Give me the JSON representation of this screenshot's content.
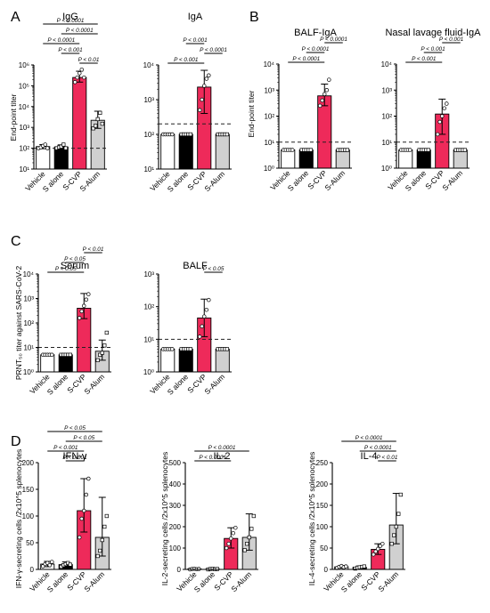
{
  "colors": {
    "Vehicle": "#ffffff",
    "S alone": "#000000",
    "S-CVP": "#ee2a5a",
    "S-Alum": "#d0d0d0",
    "axis": "#000000"
  },
  "panels": [
    {
      "letter": "A"
    },
    {
      "letter": "B"
    },
    {
      "letter": "C"
    },
    {
      "letter": "D"
    }
  ],
  "chart_data": [
    {
      "id": "A-IgG",
      "type": "bar",
      "scale": "log",
      "panel": "A",
      "title": "IgG",
      "ylabel": "End-point titer",
      "categories": [
        "Vehicle",
        "S alone",
        "S-CVP",
        "S-Alum"
      ],
      "values": [
        120,
        115,
        250000,
        2200
      ],
      "errors": [
        [
          95,
          150
        ],
        [
          90,
          145
        ],
        [
          150000,
          500000
        ],
        [
          900,
          6000
        ]
      ],
      "points": [
        [
          100,
          110,
          130,
          150,
          100
        ],
        [
          100,
          110,
          120,
          150,
          100
        ],
        [
          150000,
          250000,
          400000,
          600000,
          250000
        ],
        [
          900,
          1200,
          2500,
          5000,
          1500
        ]
      ],
      "ylim": [
        10,
        1000000
      ],
      "ticks": [
        10,
        100,
        1000,
        10000,
        100000,
        1000000
      ],
      "tick_labels": [
        "10¹",
        "10²",
        "10³",
        "10⁴",
        "10⁵",
        "10⁶"
      ],
      "dashed": 100,
      "comparisons": [
        {
          "from": 2,
          "to": 3,
          "label": "P < 0.01"
        },
        {
          "from": 1,
          "to": 2,
          "label": "P < 0.001"
        },
        {
          "from": 0,
          "to": 2,
          "label": "P < 0.0001"
        },
        {
          "from": 1,
          "to": 3,
          "label": "P < 0.0001"
        },
        {
          "from": 0,
          "to": 3,
          "label": "P < 0.0001"
        }
      ]
    },
    {
      "id": "A-IgA",
      "type": "bar",
      "scale": "log",
      "panel": "A",
      "title": "IgA",
      "ylabel": "",
      "categories": [
        "Vehicle",
        "S alone",
        "S-CVP",
        "S-Alum"
      ],
      "values": [
        100,
        100,
        2300,
        100
      ],
      "errors": [
        [
          100,
          100
        ],
        [
          100,
          100
        ],
        [
          400,
          7000
        ],
        [
          100,
          100
        ]
      ],
      "points": [
        [
          100,
          100,
          100,
          100,
          100
        ],
        [
          100,
          100,
          100,
          100,
          100
        ],
        [
          500,
          1000,
          2500,
          4000,
          5000
        ],
        [
          100,
          100,
          100,
          100,
          100
        ]
      ],
      "ylim": [
        10,
        10000
      ],
      "ticks": [
        10,
        100,
        1000,
        10000
      ],
      "tick_labels": [
        "10¹",
        "10²",
        "10³",
        "10⁴"
      ],
      "dashed": 200,
      "comparisons": [
        {
          "from": 0,
          "to": 2,
          "label": "P < 0.001"
        },
        {
          "from": 2,
          "to": 3,
          "label": "P < 0.0001"
        },
        {
          "from": 1,
          "to": 2,
          "label": "P < 0.001"
        }
      ]
    },
    {
      "id": "B-BALF",
      "type": "bar",
      "scale": "log",
      "panel": "B",
      "title": "BALF-IgA",
      "ylabel": "End-point titer",
      "categories": [
        "Vehicle",
        "S alone",
        "S-CVP",
        "S-Alum"
      ],
      "values": [
        5,
        5,
        600,
        5
      ],
      "errors": [
        [
          5,
          5
        ],
        [
          5,
          5
        ],
        [
          250,
          1700
        ],
        [
          5,
          5
        ]
      ],
      "points": [
        [
          5,
          5,
          5,
          5,
          5
        ],
        [
          5,
          5,
          5,
          5,
          5
        ],
        [
          250,
          400,
          700,
          1000,
          2500
        ],
        [
          5,
          5,
          5,
          5,
          5
        ]
      ],
      "ylim": [
        1,
        10000
      ],
      "ticks": [
        1,
        10,
        100,
        1000,
        10000
      ],
      "tick_labels": [
        "10⁰",
        "10¹",
        "10²",
        "10³",
        "10⁴"
      ],
      "dashed": 10,
      "comparisons": [
        {
          "from": 0,
          "to": 2,
          "label": "P < 0.0001"
        },
        {
          "from": 1,
          "to": 2,
          "label": "P < 0.0001"
        },
        {
          "from": 2,
          "to": 3,
          "label": "P < 0.0001"
        }
      ]
    },
    {
      "id": "B-Nasal",
      "type": "bar",
      "scale": "log",
      "panel": "B",
      "title": "Nasal lavage fluid-IgA",
      "ylabel": "",
      "categories": [
        "Vehicle",
        "S alone",
        "S-CVP",
        "S-Alum"
      ],
      "values": [
        5,
        5,
        120,
        5
      ],
      "errors": [
        [
          5,
          5
        ],
        [
          5,
          5
        ],
        [
          20,
          450
        ],
        [
          5,
          5
        ]
      ],
      "points": [
        [
          5,
          5,
          5,
          5,
          5
        ],
        [
          5,
          5,
          5,
          5,
          5
        ],
        [
          20,
          60,
          100,
          200,
          300
        ],
        [
          5,
          5,
          5,
          5,
          5
        ]
      ],
      "ylim": [
        1,
        10000
      ],
      "ticks": [
        1,
        10,
        100,
        1000,
        10000
      ],
      "tick_labels": [
        "10⁰",
        "10¹",
        "10²",
        "10³",
        "10⁴"
      ],
      "dashed": 10,
      "comparisons": [
        {
          "from": 0,
          "to": 2,
          "label": "P < 0.001"
        },
        {
          "from": 1,
          "to": 2,
          "label": "P < 0.001"
        },
        {
          "from": 2,
          "to": 3,
          "label": "P < 0.001"
        }
      ]
    },
    {
      "id": "C-Serum",
      "type": "bar",
      "scale": "log",
      "panel": "C",
      "title": "Serum",
      "ylabel": "PRNT₅₀ titer against SARS-CoV-2",
      "categories": [
        "Vehicle",
        "S alone",
        "S-CVP",
        "S-Alum"
      ],
      "values": [
        5,
        5,
        400,
        7
      ],
      "errors": [
        [
          5,
          5
        ],
        [
          5,
          5
        ],
        [
          150,
          1600
        ],
        [
          3,
          20
        ]
      ],
      "points": [
        [
          5,
          5,
          5,
          5,
          5
        ],
        [
          5,
          5,
          5,
          5,
          5
        ],
        [
          160,
          300,
          500,
          900,
          1500
        ],
        [
          3,
          5,
          6,
          12,
          40
        ]
      ],
      "ylim": [
        1,
        10000
      ],
      "ticks": [
        1,
        10,
        100,
        1000,
        10000
      ],
      "tick_labels": [
        "10⁰",
        "10¹",
        "10²",
        "10³",
        "10⁴"
      ],
      "dashed": 10,
      "comparisons": [
        {
          "from": 0,
          "to": 2,
          "label": "P < 0.05"
        },
        {
          "from": 1,
          "to": 2,
          "label": "P < 0.05"
        },
        {
          "from": 2,
          "to": 3,
          "label": "P < 0.01"
        }
      ]
    },
    {
      "id": "C-BALF",
      "type": "bar",
      "scale": "log",
      "panel": "C",
      "title": "BALF",
      "ylabel": "",
      "categories": [
        "Vehicle",
        "S alone",
        "S-CVP",
        "S-Alum"
      ],
      "values": [
        5,
        5,
        45,
        5
      ],
      "errors": [
        [
          5,
          5
        ],
        [
          5,
          5
        ],
        [
          12,
          170
        ],
        [
          5,
          5
        ]
      ],
      "points": [
        [
          5,
          5,
          5,
          5,
          5
        ],
        [
          5,
          5,
          5,
          5,
          5
        ],
        [
          12,
          25,
          50,
          80,
          160
        ],
        [
          5,
          5,
          5,
          5,
          5
        ]
      ],
      "ylim": [
        1,
        1000
      ],
      "ticks": [
        1,
        10,
        100,
        1000
      ],
      "tick_labels": [
        "10⁰",
        "10¹",
        "10²",
        "10³"
      ],
      "dashed": 10,
      "comparisons": [
        {
          "from": 2,
          "to": 3,
          "label": "P < 0.05"
        }
      ]
    },
    {
      "id": "D-IFN",
      "type": "bar",
      "scale": "linear",
      "panel": "D",
      "title": "IFN-γ",
      "ylabel": "IFN-γ-secreting cells /2x10^5 splenocytes",
      "categories": [
        "Vehicle",
        "S alone",
        "S-CVP",
        "S-Alum"
      ],
      "values": [
        10,
        9,
        110,
        60
      ],
      "errors": [
        [
          5,
          15
        ],
        [
          5,
          14
        ],
        [
          70,
          170
        ],
        [
          25,
          135
        ]
      ],
      "points": [
        [
          6,
          10,
          12,
          8,
          14
        ],
        [
          5,
          8,
          10,
          12,
          9
        ],
        [
          60,
          95,
          110,
          140,
          170
        ],
        [
          25,
          35,
          55,
          80,
          100
        ]
      ],
      "ylim": [
        0,
        200
      ],
      "ticks": [
        0,
        50,
        100,
        150,
        200
      ],
      "tick_labels": [
        "0",
        "50",
        "100",
        "150",
        "200"
      ],
      "comparisons": [
        {
          "from": 1,
          "to": 2,
          "label": "P < 0.001"
        },
        {
          "from": 0,
          "to": 2,
          "label": "P < 0.001"
        },
        {
          "from": 1,
          "to": 3,
          "label": "P < 0.05"
        },
        {
          "from": 0,
          "to": 3,
          "label": "P < 0.05"
        }
      ]
    },
    {
      "id": "D-IL2",
      "type": "bar",
      "scale": "linear",
      "panel": "D",
      "title": "IL-2",
      "ylabel": "IL-2-secreting cells /2x10^5 splenocytes",
      "categories": [
        "Vehicle",
        "S alone",
        "S-CVP",
        "S-Alum"
      ],
      "values": [
        2,
        2,
        145,
        150
      ],
      "errors": [
        [
          0,
          4
        ],
        [
          0,
          4
        ],
        [
          100,
          195
        ],
        [
          90,
          260
        ]
      ],
      "points": [
        [
          0,
          2,
          3,
          1,
          2
        ],
        [
          0,
          2,
          3,
          1,
          2
        ],
        [
          100,
          120,
          145,
          170,
          195
        ],
        [
          90,
          120,
          150,
          190,
          250
        ]
      ],
      "ylim": [
        0,
        500
      ],
      "ticks": [
        0,
        100,
        200,
        300,
        400,
        500
      ],
      "tick_labels": [
        "0",
        "100",
        "200",
        "300",
        "400",
        "500"
      ],
      "comparisons": [
        {
          "from": 0,
          "to": 2,
          "label": "P < 0.0001"
        },
        {
          "from": 0,
          "to": 3,
          "label": "P < 0.0001"
        }
      ]
    },
    {
      "id": "D-IL4",
      "type": "bar",
      "scale": "linear",
      "panel": "D",
      "title": "IL-4",
      "ylabel": "IL-4-secreting cells /2x10^5 splenocytes",
      "categories": [
        "Vehicle",
        "S alone",
        "S-CVP",
        "S-Alum"
      ],
      "values": [
        6,
        5,
        47,
        104
      ],
      "errors": [
        [
          3,
          9
        ],
        [
          2,
          8
        ],
        [
          35,
          60
        ],
        [
          60,
          178
        ]
      ],
      "points": [
        [
          3,
          6,
          8,
          5,
          7
        ],
        [
          2,
          4,
          5,
          6,
          7
        ],
        [
          35,
          42,
          48,
          55,
          60
        ],
        [
          60,
          80,
          100,
          130,
          175
        ]
      ],
      "ylim": [
        0,
        250
      ],
      "ticks": [
        0,
        50,
        100,
        150,
        200,
        250
      ],
      "tick_labels": [
        "0",
        "50",
        "100",
        "150",
        "200",
        "250"
      ],
      "comparisons": [
        {
          "from": 2,
          "to": 3,
          "label": "P < 0.01"
        },
        {
          "from": 1,
          "to": 3,
          "label": "P < 0.0001"
        },
        {
          "from": 0,
          "to": 3,
          "label": "P < 0.0001"
        }
      ]
    }
  ]
}
